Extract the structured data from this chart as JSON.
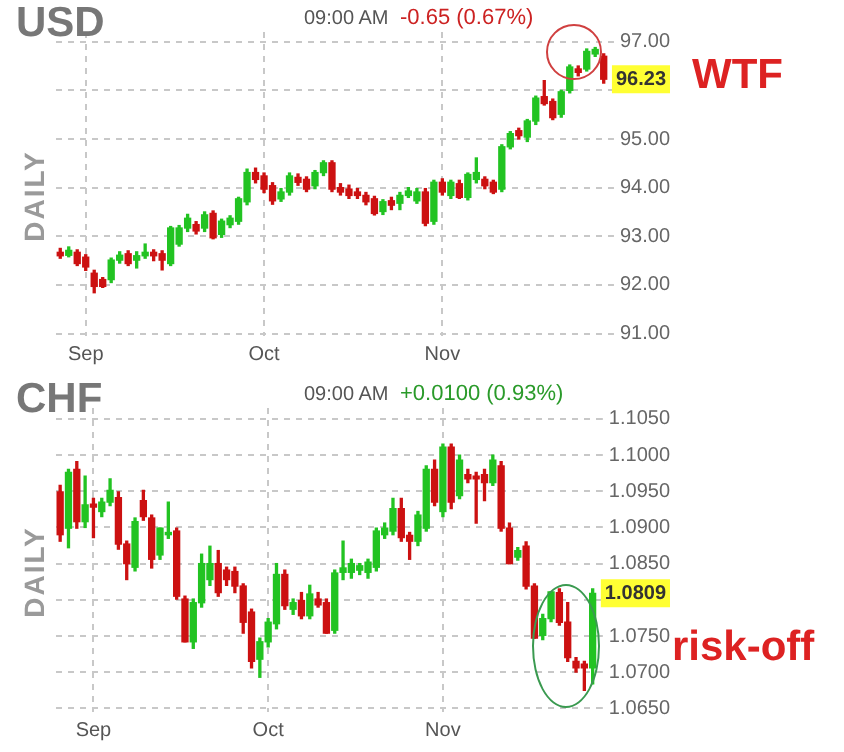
{
  "chart_data": [
    {
      "type": "candlestick",
      "title": "USD",
      "subtitle": "09:00 AM",
      "ylabel": "DAILY",
      "annotations": [
        "-0.65 (0.67%)",
        {
          "text": "96.23",
          "y": 96.23
        },
        "WTF"
      ],
      "categories": [
        null,
        null,
        null,
        "Sep",
        null,
        null,
        null,
        null,
        null,
        null,
        null,
        null,
        null,
        null,
        null,
        null,
        null,
        null,
        null,
        null,
        null,
        null,
        null,
        null,
        "Oct",
        null,
        null,
        null,
        null,
        null,
        null,
        null,
        null,
        null,
        null,
        null,
        null,
        null,
        null,
        null,
        null,
        null,
        null,
        null,
        null,
        "Nov",
        null,
        null,
        null,
        null,
        null,
        null,
        null,
        null,
        null,
        null,
        null,
        null,
        null,
        null,
        null,
        null,
        null,
        null,
        null
      ],
      "ohlc": [
        [
          92.67,
          92.75,
          92.55,
          92.6
        ],
        [
          92.61,
          92.78,
          92.58,
          92.71
        ],
        [
          92.67,
          92.72,
          92.4,
          92.44
        ],
        [
          92.57,
          92.62,
          92.3,
          92.37
        ],
        [
          92.24,
          92.3,
          91.84,
          91.97
        ],
        [
          92.11,
          92.15,
          91.95,
          91.97
        ],
        [
          92.11,
          92.55,
          92.05,
          92.51
        ],
        [
          92.51,
          92.68,
          92.45,
          92.61
        ],
        [
          92.64,
          92.7,
          92.4,
          92.44
        ],
        [
          92.51,
          92.68,
          92.35,
          92.6
        ],
        [
          92.6,
          92.84,
          92.55,
          92.67
        ],
        [
          92.67,
          92.72,
          92.5,
          92.6
        ],
        [
          92.64,
          92.7,
          92.31,
          92.51
        ],
        [
          92.44,
          93.2,
          92.4,
          93.17
        ],
        [
          92.84,
          93.22,
          92.8,
          93.17
        ],
        [
          93.17,
          93.45,
          93.1,
          93.37
        ],
        [
          93.24,
          93.3,
          93.05,
          93.11
        ],
        [
          93.17,
          93.5,
          93.1,
          93.44
        ],
        [
          93.47,
          93.52,
          92.95,
          92.97
        ],
        [
          93.04,
          93.35,
          92.98,
          93.31
        ],
        [
          93.24,
          93.42,
          93.18,
          93.37
        ],
        [
          93.31,
          93.8,
          93.25,
          93.77
        ],
        [
          93.71,
          94.38,
          93.65,
          94.31
        ],
        [
          94.31,
          94.4,
          94.1,
          94.17
        ],
        [
          94.24,
          94.3,
          93.9,
          93.97
        ],
        [
          94.04,
          94.1,
          93.66,
          93.73
        ],
        [
          93.77,
          93.98,
          93.72,
          93.91
        ],
        [
          93.91,
          94.3,
          93.85,
          94.24
        ],
        [
          94.21,
          94.28,
          94.05,
          94.11
        ],
        [
          94.17,
          94.22,
          93.92,
          93.97
        ],
        [
          94.04,
          94.35,
          93.98,
          94.31
        ],
        [
          94.31,
          94.55,
          94.25,
          94.51
        ],
        [
          94.51,
          94.55,
          93.92,
          93.97
        ],
        [
          94.0,
          94.08,
          93.85,
          93.91
        ],
        [
          93.97,
          94.05,
          93.78,
          93.84
        ],
        [
          93.91,
          93.98,
          93.78,
          93.84
        ],
        [
          93.84,
          93.9,
          93.65,
          93.71
        ],
        [
          93.77,
          93.82,
          93.44,
          93.47
        ],
        [
          93.51,
          93.75,
          93.45,
          93.71
        ],
        [
          93.73,
          93.8,
          93.55,
          93.64
        ],
        [
          93.68,
          93.9,
          93.55,
          93.84
        ],
        [
          93.84,
          94.0,
          93.8,
          93.93
        ],
        [
          93.73,
          93.98,
          93.68,
          93.91
        ],
        [
          93.91,
          93.98,
          93.22,
          93.27
        ],
        [
          93.31,
          94.15,
          93.25,
          94.11
        ],
        [
          94.11,
          94.18,
          93.85,
          93.91
        ],
        [
          93.84,
          94.15,
          93.78,
          94.11
        ],
        [
          94.08,
          94.15,
          93.78,
          93.8
        ],
        [
          93.8,
          94.3,
          93.75,
          94.27
        ],
        [
          94.17,
          94.61,
          94.1,
          94.31
        ],
        [
          94.17,
          94.22,
          93.98,
          94.04
        ],
        [
          94.11,
          94.15,
          93.88,
          93.91
        ],
        [
          93.97,
          94.88,
          93.92,
          94.84
        ],
        [
          94.84,
          95.15,
          94.8,
          95.11
        ],
        [
          95.17,
          95.22,
          95.0,
          95.07
        ],
        [
          95.04,
          95.4,
          94.95,
          95.37
        ],
        [
          95.37,
          95.88,
          95.3,
          95.84
        ],
        [
          95.87,
          96.2,
          95.7,
          95.73
        ],
        [
          95.77,
          95.82,
          95.4,
          95.44
        ],
        [
          95.51,
          96.0,
          95.45,
          95.97
        ],
        [
          96.0,
          96.52,
          95.95,
          96.48
        ],
        [
          96.44,
          96.5,
          96.3,
          96.37
        ],
        [
          96.44,
          96.85,
          96.4,
          96.8
        ],
        [
          96.75,
          96.88,
          96.7,
          96.84
        ],
        [
          96.7,
          96.75,
          96.15,
          96.23
        ]
      ],
      "colors": [
        "#cc1111",
        "#22c322",
        "#cc1111",
        "#cc1111",
        "#cc1111",
        "#cc1111",
        "#22c322",
        "#22c322",
        "#cc1111",
        "#22c322",
        "#22c322",
        "#cc1111",
        "#cc1111",
        "#22c322",
        "#22c322",
        "#22c322",
        "#cc1111",
        "#22c322",
        "#cc1111",
        "#22c322",
        "#22c322",
        "#22c322",
        "#22c322",
        "#cc1111",
        "#cc1111",
        "#cc1111",
        "#22c322",
        "#22c322",
        "#cc1111",
        "#cc1111",
        "#22c322",
        "#22c322",
        "#cc1111",
        "#cc1111",
        "#cc1111",
        "#cc1111",
        "#cc1111",
        "#cc1111",
        "#22c322",
        "#cc1111",
        "#22c322",
        "#22c322",
        "#22c322",
        "#cc1111",
        "#22c322",
        "#cc1111",
        "#22c322",
        "#cc1111",
        "#22c322",
        "#22c322",
        "#cc1111",
        "#cc1111",
        "#22c322",
        "#22c322",
        "#cc1111",
        "#22c322",
        "#22c322",
        "#cc1111",
        "#cc1111",
        "#22c322",
        "#22c322",
        "#cc1111",
        "#22c322",
        "#22c322",
        "#cc1111"
      ],
      "ylim": [
        90.95,
        97.2
      ],
      "yticks": [
        {
          "value": 91,
          "label": "91.00"
        },
        {
          "value": 92,
          "label": "92.00"
        },
        {
          "value": 93,
          "label": "93.00"
        },
        {
          "value": 94,
          "label": "94.00"
        },
        {
          "value": 95,
          "label": "95.00"
        },
        {
          "value": 96,
          "label": null
        },
        {
          "value": 97,
          "label": "97.00"
        }
      ],
      "grid": true
    },
    {
      "type": "candlestick",
      "title": "CHF",
      "subtitle": "09:00 AM",
      "ylabel": "DAILY",
      "annotations": [
        "+0.0100 (0.93%)",
        {
          "text": "1.0809",
          "y": 1.0809
        },
        "risk-off"
      ],
      "categories": [
        null,
        null,
        null,
        null,
        "Sep",
        null,
        null,
        null,
        null,
        null,
        null,
        null,
        null,
        null,
        null,
        null,
        null,
        null,
        null,
        null,
        null,
        null,
        null,
        null,
        null,
        "Oct",
        null,
        null,
        null,
        null,
        null,
        null,
        null,
        null,
        null,
        null,
        null,
        null,
        null,
        null,
        null,
        null,
        null,
        null,
        null,
        null,
        "Nov",
        null,
        null,
        null,
        null,
        null,
        null,
        null,
        null,
        null,
        null,
        null,
        null,
        null,
        null,
        null,
        null,
        null,
        null
      ],
      "ohlc": [
        [
          1.0949,
          1.0958,
          1.0881,
          1.089
        ],
        [
          1.0899,
          1.098,
          1.0872,
          1.0976
        ],
        [
          1.098,
          1.0991,
          1.0899,
          1.0908
        ],
        [
          1.0908,
          1.0971,
          1.09,
          1.0931
        ],
        [
          1.0932,
          1.094,
          1.0886,
          1.0928
        ],
        [
          1.0922,
          1.094,
          1.0915,
          1.0935
        ],
        [
          1.0935,
          1.0967,
          1.093,
          1.0951
        ],
        [
          1.0941,
          1.0949,
          1.087,
          1.0877
        ],
        [
          1.0877,
          1.0881,
          1.0828,
          1.085
        ],
        [
          1.0845,
          1.0913,
          1.084,
          1.0908
        ],
        [
          1.0937,
          1.0951,
          1.091,
          1.0915
        ],
        [
          1.0913,
          1.0917,
          1.0844,
          1.0856
        ],
        [
          1.0862,
          1.0899,
          1.0856,
          1.0899
        ],
        [
          1.089,
          1.0935,
          1.0885,
          1.0893
        ],
        [
          1.0895,
          1.0899,
          1.0801,
          1.0805
        ],
        [
          1.0801,
          1.0805,
          1.0742,
          1.0742
        ],
        [
          1.0742,
          1.0801,
          1.0733,
          1.0796
        ],
        [
          1.0796,
          1.0863,
          1.079,
          1.085
        ],
        [
          1.0828,
          1.0874,
          1.082,
          1.085
        ],
        [
          1.085,
          1.0868,
          1.0805,
          1.081
        ],
        [
          1.0841,
          1.0845,
          1.082,
          1.0828
        ],
        [
          1.0839,
          1.0845,
          1.081,
          1.0819
        ],
        [
          1.0819,
          1.0822,
          1.0754,
          1.0769
        ],
        [
          1.0783,
          1.0787,
          1.0706,
          1.0715
        ],
        [
          1.0718,
          1.0747,
          1.0693,
          1.0742
        ],
        [
          1.0742,
          1.0774,
          1.0735,
          1.0769
        ],
        [
          1.0767,
          1.085,
          1.076,
          1.0835
        ],
        [
          1.0835,
          1.0841,
          1.0787,
          1.0792
        ],
        [
          1.0787,
          1.0801,
          1.078,
          1.0796
        ],
        [
          1.0799,
          1.081,
          1.0774,
          1.0778
        ],
        [
          1.0778,
          1.082,
          1.0774,
          1.0808
        ],
        [
          1.0801,
          1.081,
          1.079,
          1.0793
        ],
        [
          1.0796,
          1.0801,
          1.0754,
          1.0754
        ],
        [
          1.0758,
          1.0841,
          1.0754,
          1.0837
        ],
        [
          1.0838,
          1.0881,
          1.0828,
          1.0844
        ],
        [
          1.0838,
          1.0856,
          1.083,
          1.085
        ],
        [
          1.0841,
          1.085,
          1.0835,
          1.0847
        ],
        [
          1.0838,
          1.0856,
          1.083,
          1.0852
        ],
        [
          1.0845,
          1.0899,
          1.084,
          1.0895
        ],
        [
          1.089,
          1.0906,
          1.0885,
          1.0899
        ],
        [
          1.0895,
          1.094,
          1.089,
          1.0926
        ],
        [
          1.0926,
          1.094,
          1.0881,
          1.0886
        ],
        [
          1.0889,
          1.0893,
          1.0856,
          1.0881
        ],
        [
          1.0881,
          1.0922,
          1.0875,
          1.0917
        ],
        [
          1.0899,
          1.0985,
          1.0895,
          1.098
        ],
        [
          1.098,
          1.0993,
          1.093,
          1.0935
        ],
        [
          1.0922,
          1.1015,
          1.0915,
          1.1011
        ],
        [
          1.1011,
          1.1015,
          1.0926,
          1.0935
        ],
        [
          1.0944,
          1.1,
          1.094,
          1.0993
        ],
        [
          1.0973,
          1.098,
          1.0962,
          1.0967
        ],
        [
          1.0971,
          1.0976,
          1.0906,
          1.0967
        ],
        [
          1.0973,
          1.098,
          1.0937,
          1.0962
        ],
        [
          1.0962,
          1.1,
          1.0958,
          1.0993
        ],
        [
          1.0985,
          1.0991,
          1.0895,
          1.0899
        ],
        [
          1.0899,
          1.0906,
          1.085,
          1.085
        ],
        [
          1.0859,
          1.0872,
          1.0855,
          1.0868
        ],
        [
          1.0874,
          1.088,
          1.0815,
          1.0819
        ],
        [
          1.0819,
          1.0822,
          1.0747,
          1.0747
        ],
        [
          1.0751,
          1.078,
          1.0745,
          1.0774
        ],
        [
          1.0774,
          1.0811,
          1.077,
          1.0811
        ],
        [
          1.081,
          1.0815,
          1.0765,
          1.0769
        ],
        [
          1.0769,
          1.0796,
          1.0715,
          1.072
        ],
        [
          1.0715,
          1.072,
          1.07,
          1.0706
        ],
        [
          1.0711,
          1.0715,
          1.0675,
          1.0706
        ],
        [
          1.0706,
          1.0815,
          1.0684,
          1.0809
        ]
      ],
      "colors": [
        "#cc1111",
        "#22c322",
        "#cc1111",
        "#22c322",
        "#cc1111",
        "#22c322",
        "#22c322",
        "#cc1111",
        "#cc1111",
        "#22c322",
        "#cc1111",
        "#cc1111",
        "#22c322",
        "#22c322",
        "#cc1111",
        "#cc1111",
        "#22c322",
        "#22c322",
        "#22c322",
        "#cc1111",
        "#cc1111",
        "#cc1111",
        "#cc1111",
        "#cc1111",
        "#22c322",
        "#22c322",
        "#22c322",
        "#cc1111",
        "#22c322",
        "#cc1111",
        "#22c322",
        "#cc1111",
        "#cc1111",
        "#22c322",
        "#22c322",
        "#22c322",
        "#22c322",
        "#22c322",
        "#22c322",
        "#22c322",
        "#22c322",
        "#cc1111",
        "#cc1111",
        "#22c322",
        "#22c322",
        "#cc1111",
        "#22c322",
        "#cc1111",
        "#22c322",
        "#cc1111",
        "#cc1111",
        "#cc1111",
        "#22c322",
        "#cc1111",
        "#cc1111",
        "#22c322",
        "#cc1111",
        "#cc1111",
        "#22c322",
        "#22c322",
        "#cc1111",
        "#cc1111",
        "#cc1111",
        "#cc1111",
        "#22c322"
      ],
      "ylim": [
        1.0645,
        1.1065
      ],
      "yticks": [
        {
          "value": 1.065,
          "label": "1.0650"
        },
        {
          "value": 1.07,
          "label": "1.0700"
        },
        {
          "value": 1.075,
          "label": "1.0750"
        },
        {
          "value": 1.08,
          "label": null
        },
        {
          "value": 1.085,
          "label": "1.0850"
        },
        {
          "value": 1.09,
          "label": "1.0900"
        },
        {
          "value": 1.095,
          "label": "1.0950"
        },
        {
          "value": 1.1,
          "label": "1.1000"
        },
        {
          "value": 1.105,
          "label": "1.1050"
        }
      ],
      "grid": true
    }
  ]
}
